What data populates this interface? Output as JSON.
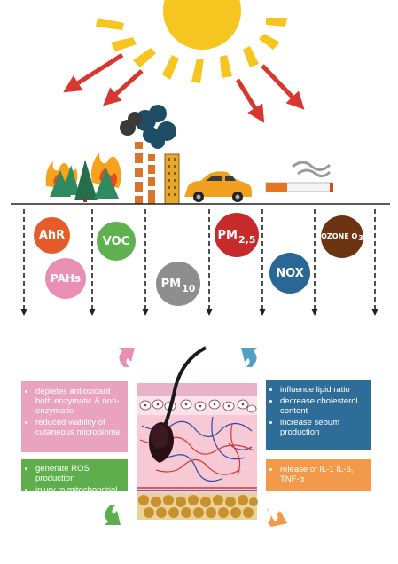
{
  "pollutants": [
    {
      "key": "ahr",
      "main": "AhR",
      "sub": "",
      "color": "#e55b2a"
    },
    {
      "key": "pahs",
      "main": "PAHs",
      "sub": "",
      "color": "#e98fb4"
    },
    {
      "key": "voc",
      "main": "VOC",
      "sub": "",
      "color": "#5fb04e"
    },
    {
      "key": "pm10",
      "main": "PM",
      "sub": "10",
      "color": "#8e8e8e"
    },
    {
      "key": "pm25",
      "main": "PM",
      "sub": "2,5",
      "color": "#c62a2a"
    },
    {
      "key": "nox",
      "main": "NOX",
      "sub": "",
      "color": "#2a6696"
    },
    {
      "key": "ozone",
      "main": "OZONE O",
      "sub": "3",
      "color": "#6d3412"
    }
  ],
  "effects": {
    "pink": {
      "color": "#e9a3bd",
      "items": [
        "depletes antioxidant both enzymatic & non-enzymatic",
        "reduced viability of cutaneous microbiome"
      ]
    },
    "green": {
      "color": "#5fae4c",
      "items": [
        "generate ROS production",
        "injury to mitochondrial"
      ]
    },
    "blue": {
      "color": "#2f6d99",
      "items": [
        "influence lipid ratio",
        "decrease cholesterol content",
        "increase sebum production"
      ]
    },
    "orange": {
      "color": "#f2994a",
      "items": [
        "release of IL-1 IL-6, TNF-α"
      ]
    }
  },
  "colors": {
    "sun": "#f7c51f",
    "arrow_red": "#d7372f",
    "tree": "#2f8a5f",
    "car": "#f2a01f",
    "factory": "#d9742a"
  },
  "icons": [
    "sun-icon",
    "fire-icon",
    "tree-icon",
    "factory-icon",
    "smoke-icon",
    "building-icon",
    "car-icon",
    "cigarette-icon",
    "skin-cross-section-icon",
    "cycle-arrow-icon"
  ]
}
